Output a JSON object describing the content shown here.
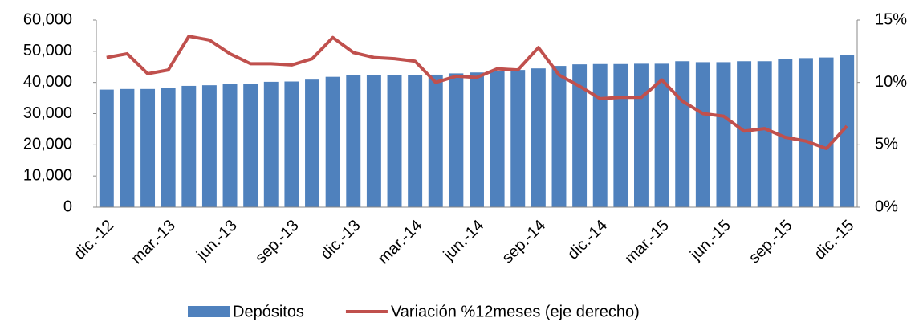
{
  "chart_data": {
    "type": "bar_line",
    "categories": [
      "dic.-12",
      null,
      null,
      "mar.-13",
      null,
      null,
      "jun.-13",
      null,
      null,
      "sep.-13",
      null,
      null,
      "dic.-13",
      null,
      null,
      "mar.-14",
      null,
      null,
      "jun.-14",
      null,
      null,
      "sep.-14",
      null,
      null,
      "dic.-14",
      null,
      null,
      "mar.-15",
      null,
      null,
      "jun.-15",
      null,
      null,
      "sep.-15",
      null,
      null,
      "dic.-15"
    ],
    "series": [
      {
        "name": "Depósitos",
        "color": "#4f81bd",
        "type": "bar",
        "values": [
          37700,
          37900,
          37900,
          38200,
          38900,
          39100,
          39400,
          39600,
          40200,
          40300,
          40900,
          41800,
          42300,
          42300,
          42300,
          42400,
          42500,
          42900,
          43200,
          43600,
          44000,
          44500,
          45300,
          45800,
          45900,
          45900,
          46000,
          46000,
          46800,
          46500,
          46500,
          46800,
          46800,
          47500,
          47800,
          48000,
          48900
        ]
      },
      {
        "name": "Variación %12meses (eje derecho)",
        "color": "#c0504d",
        "type": "line",
        "axis": "y2",
        "values": [
          12.0,
          12.3,
          10.7,
          11.0,
          13.7,
          13.4,
          12.3,
          11.5,
          11.5,
          11.4,
          11.9,
          13.6,
          12.4,
          12.0,
          11.9,
          11.7,
          10.0,
          10.5,
          10.4,
          11.1,
          11.0,
          12.8,
          10.6,
          9.7,
          8.7,
          8.8,
          8.8,
          10.2,
          8.5,
          7.5,
          7.3,
          6.1,
          6.3,
          5.6,
          5.3,
          4.7,
          6.5
        ]
      }
    ],
    "ylim": [
      0,
      60000
    ],
    "yticks": [
      0,
      {
        "value": 10000,
        "label": "10,000"
      },
      {
        "value": 20000,
        "label": "20,000"
      },
      {
        "value": 30000,
        "label": "30,000"
      },
      {
        "value": 40000,
        "label": "40,000"
      },
      {
        "value": 50000,
        "label": "50,000"
      },
      {
        "value": 60000,
        "label": "60,000"
      }
    ],
    "y2lim": [
      0,
      15
    ],
    "y2ticks": [
      {
        "value": 0,
        "label": "0%"
      },
      {
        "value": 5,
        "label": "5%"
      },
      {
        "value": 10,
        "label": "10%"
      },
      {
        "value": 15,
        "label": "15%"
      }
    ],
    "legend": "bottom"
  }
}
